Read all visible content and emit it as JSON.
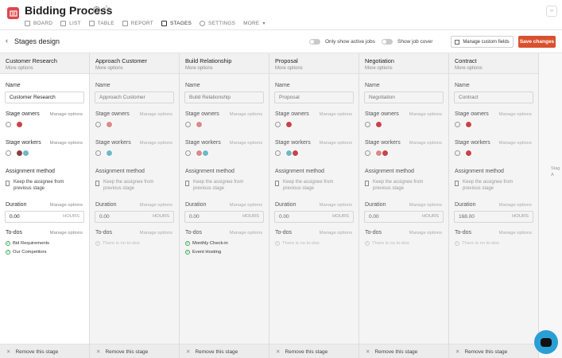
{
  "header": {
    "title": "Bidding Process",
    "tabs": [
      {
        "label": "BOARD",
        "active": false
      },
      {
        "label": "LIST",
        "active": false
      },
      {
        "label": "TABLE",
        "active": false
      },
      {
        "label": "REPORT",
        "active": false
      },
      {
        "label": "STAGES",
        "active": true
      },
      {
        "label": "SETTINGS",
        "active": false
      },
      {
        "label": "MORE",
        "active": false
      }
    ],
    "collapse": "‹›"
  },
  "subbar": {
    "title": "Stages design",
    "toggle_active_jobs": "Only show active jobs",
    "toggle_job_cover": "Show job cover",
    "manage_fields": "Manage custom fields",
    "save": "Save changes"
  },
  "common": {
    "more_options": "More options",
    "name_label": "Name",
    "owners_label": "Stage owners",
    "workers_label": "Stage workers",
    "manage_options": "Manage options",
    "assignment_label": "Assignment method",
    "keep_assignee": "Keep the assignee from previous stage",
    "duration_label": "Duration",
    "hours": "HOURS",
    "todos_label": "To-dos",
    "no_todos": "There is no to-dos",
    "remove": "Remove this stage"
  },
  "stages": [
    {
      "name": "Customer Research",
      "duration": "0.00",
      "todos": [
        "Bid Requirements",
        "Our Competitors"
      ]
    },
    {
      "name": "Approach Customer",
      "duration": "0.00",
      "todos": []
    },
    {
      "name": "Build Relationship",
      "duration": "0.00",
      "todos": [
        "Monthly Check-in",
        "Event Hosting"
      ]
    },
    {
      "name": "Proposal",
      "duration": "0.00",
      "todos": []
    },
    {
      "name": "Negotiation",
      "duration": "0.00",
      "todos": []
    },
    {
      "name": "Contract",
      "duration": "168.00",
      "todos": []
    }
  ],
  "add_stage_partial": "Stag\nA",
  "colors": {
    "accent": "#d9502e",
    "logo": "#e0474c",
    "chat": "#2a9fd6",
    "check": "#3fae5a"
  }
}
